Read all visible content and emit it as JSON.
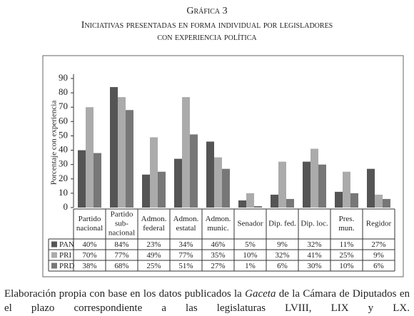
{
  "chart_data": {
    "type": "bar",
    "title": "Gráfica 3",
    "subtitle": [
      "Iniciativas presentadas en forma individual por legisladores",
      "con experiencia política"
    ],
    "y_label": "Porcentaje con experiencia",
    "categories": [
      [
        "Partido",
        "nacional"
      ],
      [
        "Partido",
        "sub-",
        "nacional"
      ],
      [
        "Admon.",
        "federal"
      ],
      [
        "Admon.",
        "estatal"
      ],
      [
        "Admon.",
        "munic."
      ],
      [
        "Senador"
      ],
      [
        "Dip. fed."
      ],
      [
        "Dip. loc."
      ],
      [
        "Pres.",
        "mun."
      ],
      [
        "Regidor"
      ]
    ],
    "series": [
      {
        "name": "PAN",
        "color": "#555555",
        "values": [
          40,
          84,
          23,
          34,
          46,
          5,
          9,
          32,
          11,
          27
        ],
        "value_labels": [
          "40%",
          "84%",
          "23%",
          "34%",
          "46%",
          "5%",
          "9%",
          "32%",
          "11%",
          "27%"
        ]
      },
      {
        "name": "PRI",
        "color": "#ababab",
        "values": [
          70,
          77,
          49,
          77,
          35,
          10,
          32,
          41,
          25,
          9
        ],
        "value_labels": [
          "70%",
          "77%",
          "49%",
          "77%",
          "35%",
          "10%",
          "32%",
          "41%",
          "25%",
          "9%"
        ]
      },
      {
        "name": "PRD",
        "color": "#777777",
        "values": [
          38,
          68,
          25,
          51,
          27,
          1,
          6,
          30,
          10,
          6
        ],
        "value_labels": [
          "38%",
          "68%",
          "25%",
          "51%",
          "27%",
          "1%",
          "6%",
          "30%",
          "10%",
          "6%"
        ]
      }
    ],
    "ylim": [
      0,
      90
    ],
    "yticks": [
      0,
      10,
      20,
      30,
      40,
      50,
      60,
      70,
      80,
      90
    ],
    "grid": false
  },
  "footnote": [
    "Elaboración propia con base en los datos publicados la ",
    "Gaceta",
    " de la Cámara de Diputados en el plazo correspondiente a las legislaturas LVIII, LIX y LX."
  ]
}
